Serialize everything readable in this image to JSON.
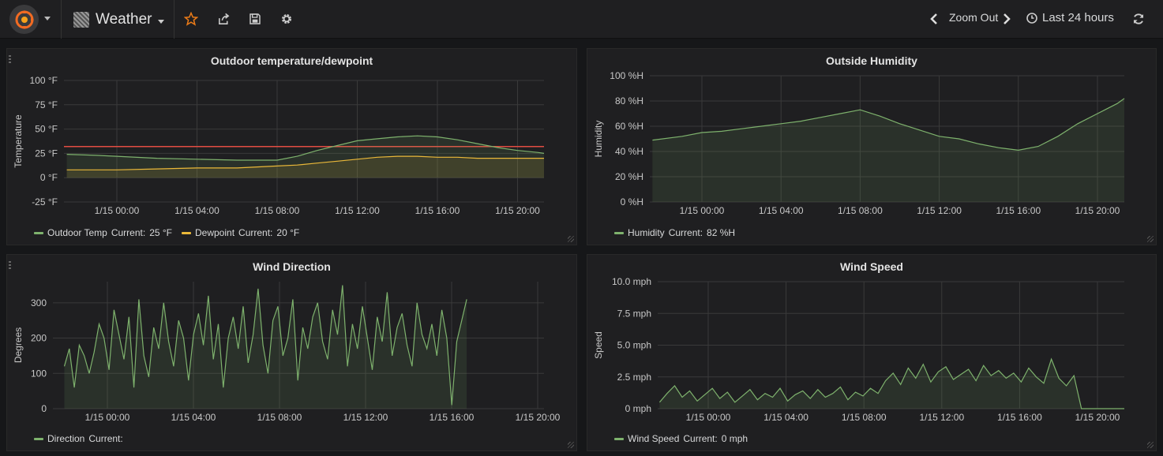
{
  "navbar": {
    "dashboard_title": "Weather",
    "zoom_out_label": "Zoom Out",
    "time_range_label": "Last 24 hours",
    "accent_color": "#eb7b18"
  },
  "panels": [
    {
      "id": "temp",
      "title": "Outdoor temperature/dewpoint",
      "legend": [
        {
          "name": "Outdoor Temp",
          "current_label": "Current:",
          "current_value": "25 °F",
          "color": "#7eb26d"
        },
        {
          "name": "Dewpoint",
          "current_label": "Current:",
          "current_value": "20 °F",
          "color": "#eab839"
        }
      ]
    },
    {
      "id": "humidity",
      "title": "Outside Humidity",
      "legend": [
        {
          "name": "Humidity",
          "current_label": "Current:",
          "current_value": "82 %H",
          "color": "#7eb26d"
        }
      ]
    },
    {
      "id": "winddir",
      "title": "Wind Direction",
      "legend": [
        {
          "name": "Direction",
          "current_label": "Current:",
          "current_value": "",
          "color": "#7eb26d"
        }
      ]
    },
    {
      "id": "windspeed",
      "title": "Wind Speed",
      "legend": [
        {
          "name": "Wind Speed",
          "current_label": "Current:",
          "current_value": "0 mph",
          "color": "#7eb26d"
        }
      ]
    }
  ],
  "chart_data": [
    {
      "type": "line",
      "title": "Outdoor temperature/dewpoint",
      "ylabel": "Temperature",
      "x_ticks": [
        "1/15 00:00",
        "1/15 04:00",
        "1/15 08:00",
        "1/15 12:00",
        "1/15 16:00",
        "1/15 20:00"
      ],
      "y_ticks": [
        "100 °F",
        "75 °F",
        "50 °F",
        "25 °F",
        "0 °F",
        "-25 °F"
      ],
      "ylim": [
        -25,
        100
      ],
      "threshold": {
        "value": 32,
        "color": "#e24d42"
      },
      "x_hours": [
        -2.5,
        -1.0,
        0.0,
        2.0,
        4.0,
        6.0,
        8.0,
        9.0,
        10.0,
        11.0,
        12.0,
        13.0,
        14.0,
        15.0,
        16.0,
        17.0,
        18.0,
        19.0,
        20.0,
        21.0,
        21.5
      ],
      "series": [
        {
          "name": "Outdoor Temp",
          "values": [
            24,
            23,
            22,
            20,
            19,
            18,
            18,
            22,
            28,
            33,
            38,
            40,
            42,
            43,
            42,
            39,
            35,
            31,
            28,
            26,
            25
          ]
        },
        {
          "name": "Dewpoint",
          "values": [
            8,
            8,
            8,
            9,
            10,
            10,
            12,
            13,
            15,
            17,
            19,
            21,
            22,
            22,
            21,
            21,
            20,
            20,
            20,
            20,
            20
          ]
        }
      ]
    },
    {
      "type": "line",
      "title": "Outside Humidity",
      "ylabel": "Humidity",
      "x_ticks": [
        "1/15 00:00",
        "1/15 04:00",
        "1/15 08:00",
        "1/15 12:00",
        "1/15 16:00",
        "1/15 20:00"
      ],
      "y_ticks": [
        "100 %H",
        "80 %H",
        "60 %H",
        "40 %H",
        "20 %H",
        "0 %H"
      ],
      "ylim": [
        0,
        100
      ],
      "x_hours": [
        -2.5,
        -1.0,
        0.0,
        1.0,
        2.0,
        3.0,
        4.0,
        5.0,
        6.0,
        7.0,
        8.0,
        9.0,
        10.0,
        11.0,
        12.0,
        13.0,
        14.0,
        15.0,
        16.0,
        17.0,
        18.0,
        19.0,
        20.0,
        21.0,
        21.5
      ],
      "series": [
        {
          "name": "Humidity",
          "values": [
            49,
            52,
            55,
            56,
            58,
            60,
            62,
            64,
            67,
            70,
            73,
            68,
            62,
            57,
            52,
            50,
            46,
            43,
            41,
            44,
            52,
            62,
            70,
            78,
            82
          ]
        }
      ]
    },
    {
      "type": "line",
      "title": "Wind Direction",
      "ylabel": "Degrees",
      "x_ticks": [
        "1/15 00:00",
        "1/15 04:00",
        "1/15 08:00",
        "1/15 12:00",
        "1/15 16:00",
        "1/15 20:00"
      ],
      "y_ticks": [
        "300",
        "200",
        "100",
        "0"
      ],
      "ylim": [
        0,
        360
      ],
      "x_range_hours": [
        -2.0,
        16.7
      ],
      "series": [
        {
          "name": "Direction",
          "values": [
            120,
            170,
            60,
            180,
            150,
            100,
            160,
            240,
            200,
            110,
            280,
            210,
            140,
            260,
            60,
            310,
            150,
            90,
            230,
            170,
            300,
            190,
            120,
            250,
            200,
            80,
            210,
            270,
            180,
            320,
            140,
            240,
            60,
            200,
            260,
            170,
            290,
            130,
            210,
            340,
            180,
            100,
            250,
            290,
            150,
            200,
            310,
            80,
            230,
            170,
            260,
            300,
            190,
            140,
            280,
            210,
            350,
            120,
            240,
            170,
            290,
            200,
            110,
            260,
            190,
            330,
            150,
            230,
            270,
            180,
            120,
            300,
            210,
            170,
            240,
            150,
            280,
            200,
            10,
            190,
            250,
            310
          ]
        }
      ]
    },
    {
      "type": "line",
      "title": "Wind Speed",
      "ylabel": "Speed",
      "x_ticks": [
        "1/15 00:00",
        "1/15 04:00",
        "1/15 08:00",
        "1/15 12:00",
        "1/15 16:00",
        "1/15 20:00"
      ],
      "y_ticks": [
        "10.0 mph",
        "7.5 mph",
        "5.0 mph",
        "2.5 mph",
        "0 mph"
      ],
      "ylim": [
        0,
        10
      ],
      "x_range_hours": [
        -2.5,
        21.5
      ],
      "series": [
        {
          "name": "Wind Speed",
          "values": [
            0.5,
            1.2,
            1.8,
            0.9,
            1.4,
            0.6,
            1.1,
            1.6,
            0.8,
            1.3,
            0.5,
            1.0,
            1.5,
            0.7,
            1.2,
            0.9,
            1.6,
            0.6,
            1.1,
            1.4,
            0.8,
            1.5,
            0.9,
            1.2,
            1.7,
            0.7,
            1.3,
            1.0,
            1.6,
            1.2,
            2.2,
            2.8,
            1.9,
            3.2,
            2.4,
            3.5,
            2.1,
            2.9,
            3.3,
            2.3,
            2.7,
            3.1,
            2.2,
            3.4,
            2.6,
            3.0,
            2.4,
            2.8,
            2.1,
            3.2,
            2.5,
            2.0,
            3.9,
            2.4,
            1.8,
            2.6,
            0.0,
            0.0,
            0.0,
            0.0,
            0.0,
            0.0,
            0.0
          ]
        }
      ]
    }
  ]
}
